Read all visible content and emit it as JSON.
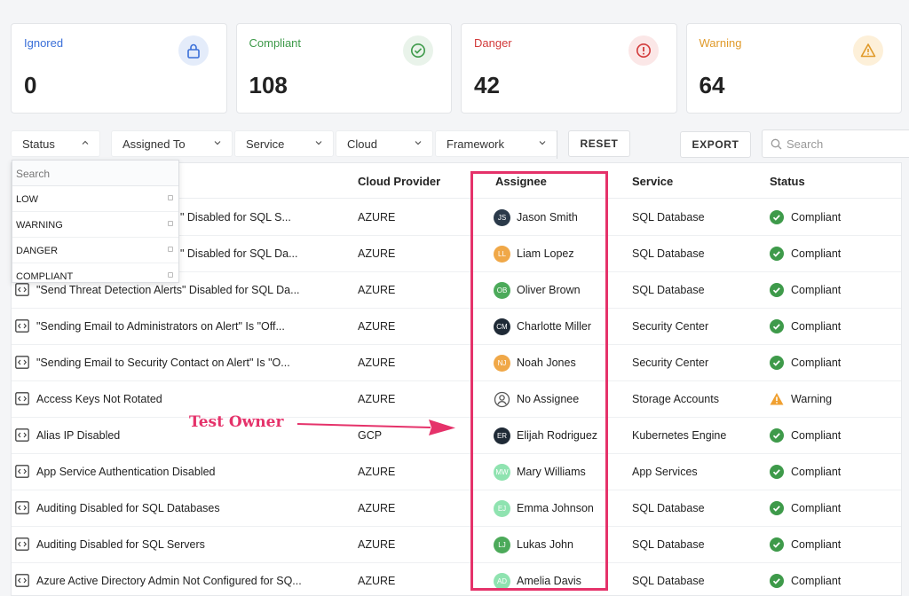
{
  "summary_cards": [
    {
      "label": "Ignored",
      "value": "0",
      "color": "#3a6fd8",
      "icon": "lock-icon",
      "icon_bg": "#e4ecfa"
    },
    {
      "label": "Compliant",
      "value": "108",
      "color": "#3e9a4a",
      "icon": "check-circle-icon",
      "icon_bg": "#e9f3ea"
    },
    {
      "label": "Danger",
      "value": "42",
      "color": "#d23a3a",
      "icon": "exclamation-circle-icon",
      "icon_bg": "#fbe7e7"
    },
    {
      "label": "Warning",
      "value": "64",
      "color": "#e09a2a",
      "icon": "warning-triangle-icon",
      "icon_bg": "#fdf0d9"
    }
  ],
  "filters": {
    "status": "Status",
    "assigned_to": "Assigned To",
    "service": "Service",
    "cloud": "Cloud",
    "framework": "Framework"
  },
  "actions": {
    "reset": "RESET",
    "export": "EXPORT",
    "search_placeholder": "Search"
  },
  "status_dropdown": {
    "search_placeholder": "Search",
    "options": [
      "LOW",
      "WARNING",
      "DANGER",
      "COMPLIANT"
    ]
  },
  "table": {
    "headers": {
      "cloud_provider": "Cloud Provider",
      "assignee": "Assignee",
      "service": "Service",
      "status": "Status"
    },
    "rows": [
      {
        "rule": "\" Disabled for SQL S...",
        "cloud": "AZURE",
        "initials": "JS",
        "avatar_color": "#2b3a4a",
        "assignee": "Jason Smith",
        "service": "SQL Database",
        "status": "Compliant"
      },
      {
        "rule": "\" Disabled for SQL Da...",
        "cloud": "AZURE",
        "initials": "LL",
        "avatar_color": "#f0a848",
        "assignee": "Liam Lopez",
        "service": "SQL Database",
        "status": "Compliant"
      },
      {
        "rule": "\"Send Threat Detection Alerts\" Disabled for SQL Da...",
        "cloud": "AZURE",
        "initials": "OB",
        "avatar_color": "#4caa5a",
        "assignee": "Oliver Brown",
        "service": "SQL Database",
        "status": "Compliant"
      },
      {
        "rule": "\"Sending Email to Administrators on Alert\" Is \"Off...",
        "cloud": "AZURE",
        "initials": "CM",
        "avatar_color": "#1f2a36",
        "assignee": "Charlotte Miller",
        "service": "Security Center",
        "status": "Compliant"
      },
      {
        "rule": "\"Sending Email to Security Contact on Alert\" Is \"O...",
        "cloud": "AZURE",
        "initials": "NJ",
        "avatar_color": "#f0a848",
        "assignee": "Noah Jones",
        "service": "Security Center",
        "status": "Compliant"
      },
      {
        "rule": "Access Keys Not Rotated",
        "cloud": "AZURE",
        "initials": "",
        "avatar_color": "",
        "assignee": "No Assignee",
        "service": "Storage Accounts",
        "status": "Warning"
      },
      {
        "rule": "Alias IP Disabled",
        "cloud": "GCP",
        "initials": "ER",
        "avatar_color": "#1f2a36",
        "assignee": "Elijah Rodriguez",
        "service": "Kubernetes Engine",
        "status": "Compliant"
      },
      {
        "rule": "App Service Authentication Disabled",
        "cloud": "AZURE",
        "initials": "MW",
        "avatar_color": "#8fe3b0",
        "assignee": "Mary Williams",
        "service": "App Services",
        "status": "Compliant"
      },
      {
        "rule": "Auditing Disabled for SQL Databases",
        "cloud": "AZURE",
        "initials": "EJ",
        "avatar_color": "#8fe3b0",
        "assignee": "Emma Johnson",
        "service": "SQL Database",
        "status": "Compliant"
      },
      {
        "rule": "Auditing Disabled for SQL Servers",
        "cloud": "AZURE",
        "initials": "LJ",
        "avatar_color": "#4caa5a",
        "assignee": "Lukas John",
        "service": "SQL Database",
        "status": "Compliant"
      },
      {
        "rule": "Azure Active Directory Admin Not Configured for SQ...",
        "cloud": "AZURE",
        "initials": "AD",
        "avatar_color": "#8fe3b0",
        "assignee": "Amelia Davis",
        "service": "SQL Database",
        "status": "Compliant"
      }
    ]
  },
  "annotation": {
    "text": "Test Owner",
    "color": "#e5326a"
  },
  "colors": {
    "compliant": "#3e9a4a",
    "warning": "#f0a030"
  }
}
